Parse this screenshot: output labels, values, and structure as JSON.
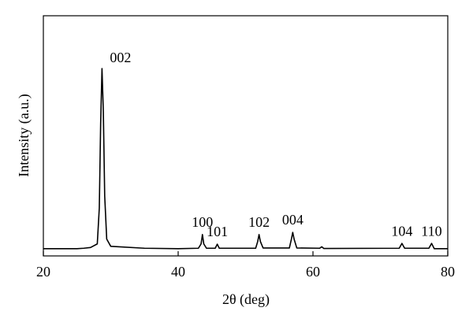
{
  "chart_data": {
    "type": "line",
    "x_label": "2θ (deg)",
    "y_label": "Intensity (a.u.)",
    "x": [
      20,
      25,
      26,
      27,
      28,
      28.3,
      28.5,
      28.7,
      28.9,
      29.1,
      29.4,
      30,
      35,
      40,
      43,
      43.4,
      43.6,
      43.8,
      44.2,
      45.5,
      45.8,
      46.1,
      51.5,
      51.8,
      52,
      52.2,
      52.6,
      56.5,
      56.8,
      57,
      57.2,
      57.6,
      61,
      61.3,
      61.6,
      72.8,
      73.2,
      73.6,
      77.2,
      77.6,
      78,
      80
    ],
    "series": [
      {
        "color": "#000000",
        "values": [
          3,
          3,
          3.2,
          3.5,
          5,
          20,
          55,
          78,
          60,
          25,
          7,
          4,
          3.2,
          3,
          3.2,
          5,
          8.9,
          5,
          3.2,
          3.2,
          4.9,
          3.2,
          3.2,
          6,
          8.9,
          6,
          3.3,
          3.3,
          7,
          9.8,
          7,
          3.3,
          3.2,
          3.8,
          3.1,
          3.2,
          5.2,
          3.2,
          3.2,
          5.2,
          3,
          3
        ]
      }
    ],
    "annotations": [
      {
        "text": "002",
        "x": 28.7
      },
      {
        "text": "100",
        "x": 43.6
      },
      {
        "text": "101",
        "x": 45.8
      },
      {
        "text": "102",
        "x": 52
      },
      {
        "text": "004",
        "x": 57
      },
      {
        "text": "104",
        "x": 73.2
      },
      {
        "text": "110",
        "x": 77.6
      }
    ],
    "xlim": [
      20,
      80
    ],
    "xticks": [
      20,
      40,
      60,
      80
    ],
    "ylim": [
      0,
      100
    ]
  }
}
